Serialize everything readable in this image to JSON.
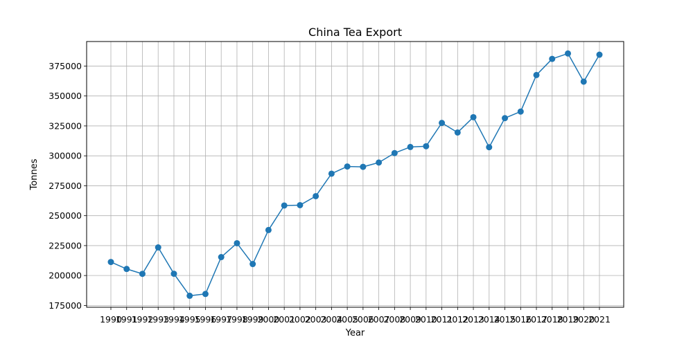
{
  "chart_data": {
    "type": "line",
    "title": "China Tea Export",
    "xlabel": "Year",
    "ylabel": "Tonnes",
    "grid": true,
    "marker": "circle",
    "color": "#1f77b4",
    "categories": [
      "1990",
      "1991",
      "1992",
      "1993",
      "1994",
      "1995",
      "1996",
      "1997",
      "1998",
      "1999",
      "2000",
      "2001",
      "2002",
      "2003",
      "2004",
      "2005",
      "2006",
      "2007",
      "2008",
      "2009",
      "2010",
      "2011",
      "2012",
      "2013",
      "2014",
      "2015",
      "2016",
      "2017",
      "2018",
      "2019",
      "2020",
      "2021"
    ],
    "series": [
      {
        "values": [
          211300,
          205500,
          201400,
          223500,
          201500,
          183100,
          184600,
          215400,
          227000,
          209600,
          238000,
          258500,
          258800,
          266300,
          285100,
          291100,
          290800,
          294400,
          302300,
          307400,
          308000,
          327500,
          319500,
          332300,
          307200,
          331500,
          337000,
          367500,
          381000,
          385500,
          362000,
          384500
        ]
      }
    ],
    "yticks": [
      175000,
      200000,
      225000,
      250000,
      275000,
      300000,
      325000,
      350000,
      375000
    ],
    "ylim": [
      173500,
      395500
    ]
  }
}
